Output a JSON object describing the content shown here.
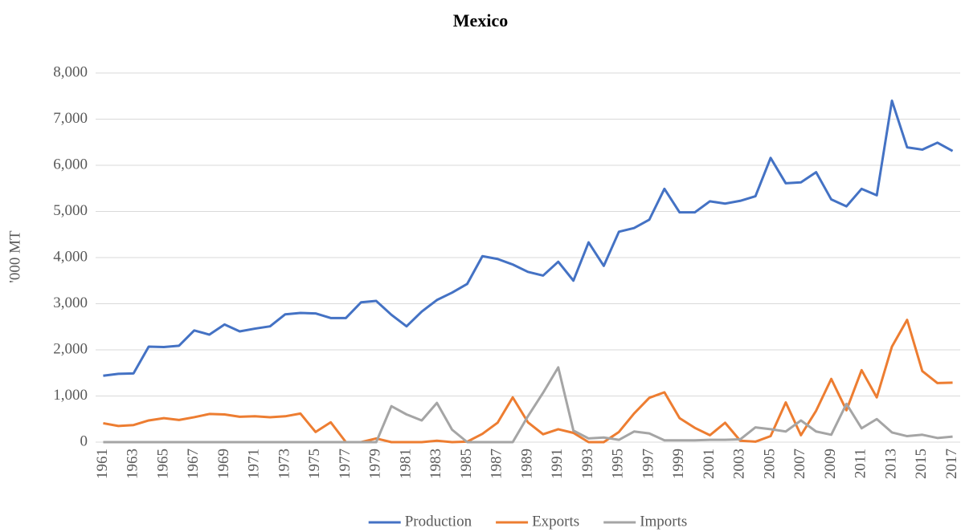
{
  "chart_data": {
    "type": "line",
    "title": "Mexico",
    "y_label": "'000 MT",
    "categories": [
      "1961",
      null,
      "1963",
      null,
      "1965",
      null,
      "1967",
      null,
      "1969",
      null,
      "1971",
      null,
      "1973",
      null,
      "1975",
      null,
      "1977",
      null,
      "1979",
      null,
      "1981",
      null,
      "1983",
      null,
      "1985",
      null,
      "1987",
      null,
      "1989",
      null,
      "1991",
      null,
      "1993",
      null,
      "1995",
      null,
      "1997",
      null,
      "1999",
      null,
      "2001",
      null,
      "2003",
      null,
      "2005",
      null,
      "2007",
      null,
      "2009",
      null,
      "2011",
      null,
      "2013",
      null,
      "2015",
      null,
      "2017"
    ],
    "series": [
      {
        "name": "Production",
        "color": "#4472c4",
        "values": [
          1440,
          1480,
          1490,
          2070,
          2060,
          2090,
          2420,
          2330,
          2550,
          2400,
          2460,
          2510,
          2770,
          2800,
          2790,
          2690,
          2690,
          3030,
          3060,
          2760,
          2510,
          2830,
          3080,
          3240,
          3430,
          4030,
          3970,
          3850,
          3690,
          3610,
          3910,
          3500,
          4330,
          3820,
          4560,
          4640,
          4820,
          5490,
          4980,
          4980,
          5220,
          5170,
          5230,
          5330,
          6160,
          5610,
          5630,
          5850,
          5260,
          5110,
          5490,
          5350,
          7400,
          6390,
          6340,
          6490,
          6310
        ]
      },
      {
        "name": "Exports",
        "color": "#ed7d31",
        "values": [
          410,
          350,
          370,
          470,
          520,
          480,
          540,
          610,
          600,
          550,
          560,
          540,
          560,
          620,
          220,
          430,
          0,
          0,
          80,
          0,
          0,
          0,
          30,
          0,
          10,
          180,
          420,
          970,
          430,
          170,
          280,
          200,
          0,
          0,
          220,
          620,
          960,
          1080,
          520,
          310,
          150,
          420,
          30,
          10,
          130,
          860,
          150,
          680,
          1370,
          690,
          1560,
          970,
          2070,
          2650,
          1540,
          1280,
          1290
        ]
      },
      {
        "name": "Imports",
        "color": "#a5a5a5",
        "values": [
          0,
          0,
          0,
          0,
          0,
          0,
          0,
          0,
          0,
          0,
          0,
          0,
          0,
          0,
          0,
          0,
          0,
          0,
          0,
          780,
          600,
          470,
          850,
          270,
          0,
          0,
          0,
          0,
          560,
          1070,
          1620,
          250,
          80,
          100,
          50,
          230,
          190,
          40,
          40,
          40,
          50,
          50,
          60,
          320,
          280,
          230,
          470,
          230,
          160,
          830,
          300,
          500,
          210,
          130,
          160,
          90,
          120
        ]
      }
    ],
    "ylim": [
      0,
      8000
    ],
    "yticks": [
      0,
      {
        "value": 1000,
        "label": "1,000"
      },
      {
        "value": 2000,
        "label": "2,000"
      },
      {
        "value": 3000,
        "label": "3,000"
      },
      {
        "value": 4000,
        "label": "4,000"
      },
      {
        "value": 5000,
        "label": "5,000"
      },
      {
        "value": 6000,
        "label": "6,000"
      },
      {
        "value": 7000,
        "label": "7,000"
      },
      {
        "value": 8000,
        "label": "8,000"
      }
    ],
    "grid": true,
    "legend": "bottom"
  }
}
